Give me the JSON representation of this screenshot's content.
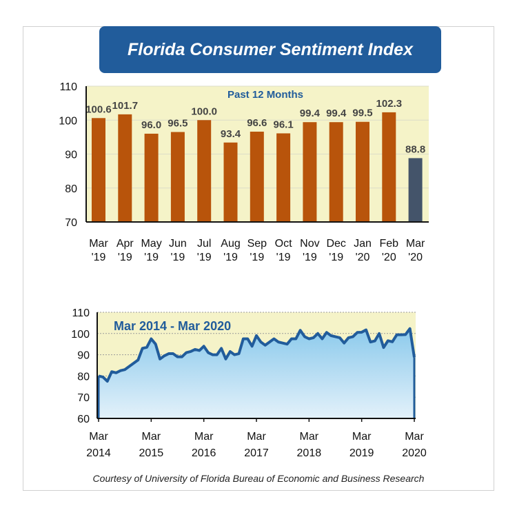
{
  "title": "Florida Consumer Sentiment Index",
  "footer": "Courtesy of University of Florida Bureau of Economic and Business Research",
  "colors": {
    "title_bg": "#215c9b",
    "bar": "#b8540b",
    "bar_latest": "#44546a",
    "plot_bg": "#f5f3c8",
    "line": "#215c9b",
    "area_top": "#8ccaec",
    "area_bottom": "#e3f1fa"
  },
  "chart_data": [
    {
      "type": "bar",
      "subtitle": "Past 12 Months",
      "categories": [
        [
          "Mar",
          "'19"
        ],
        [
          "Apr",
          "'19"
        ],
        [
          "May",
          "'19"
        ],
        [
          "Jun",
          "'19"
        ],
        [
          "Jul",
          "'19"
        ],
        [
          "Aug",
          "'19"
        ],
        [
          "Sep",
          "'19"
        ],
        [
          "Oct",
          "'19"
        ],
        [
          "Nov",
          "'19"
        ],
        [
          "Dec",
          "'19"
        ],
        [
          "Jan",
          "'20"
        ],
        [
          "Feb",
          "'20"
        ],
        [
          "Mar",
          "'20"
        ]
      ],
      "values": [
        100.6,
        101.7,
        96.0,
        96.5,
        100.0,
        93.4,
        96.6,
        96.1,
        99.4,
        99.4,
        99.5,
        102.3,
        88.8
      ],
      "labels": [
        "100.6",
        "101.7",
        "96.0",
        "96.5",
        "100.0",
        "93.4",
        "96.6",
        "96.1",
        "99.4",
        "99.4",
        "99.5",
        "102.3",
        "88.8"
      ],
      "ylim": [
        70,
        110
      ],
      "yticks": [
        "70",
        "80",
        "90",
        "100",
        "110"
      ],
      "grid": true
    },
    {
      "type": "area",
      "subtitle": "Mar 2014 - Mar 2020",
      "x_start": "Mar 2014",
      "x_end": "Mar 2020",
      "frequency": "monthly",
      "values": [
        80,
        79.5,
        77.5,
        82,
        81.5,
        82.5,
        83,
        84.5,
        86,
        87.5,
        93,
        93.5,
        97.5,
        95,
        88,
        89.5,
        90.5,
        90.5,
        89,
        89,
        91,
        91.5,
        92.5,
        92,
        94,
        91,
        90,
        90,
        93,
        88,
        91.5,
        90,
        90.5,
        97.5,
        97.5,
        94,
        99,
        96,
        94.5,
        96,
        97.5,
        96,
        95.5,
        95,
        97.5,
        97.5,
        101.5,
        98.5,
        97.5,
        98,
        100,
        97.5,
        100.5,
        99,
        98.5,
        98,
        95.5,
        98,
        98.5,
        100.5,
        100.6,
        101.7,
        96.0,
        96.5,
        100.0,
        93.4,
        96.6,
        96.1,
        99.4,
        99.4,
        99.5,
        102.3,
        88.8
      ],
      "xticks": [
        [
          "Mar",
          "2014"
        ],
        [
          "Mar",
          "2015"
        ],
        [
          "Mar",
          "2016"
        ],
        [
          "Mar",
          "2017"
        ],
        [
          "Mar",
          "2018"
        ],
        [
          "Mar",
          "2019"
        ],
        [
          "Mar",
          "2020"
        ]
      ],
      "ylim": [
        60,
        110
      ],
      "yticks": [
        "60",
        "70",
        "80",
        "90",
        "100",
        "110"
      ],
      "grid": true
    }
  ]
}
